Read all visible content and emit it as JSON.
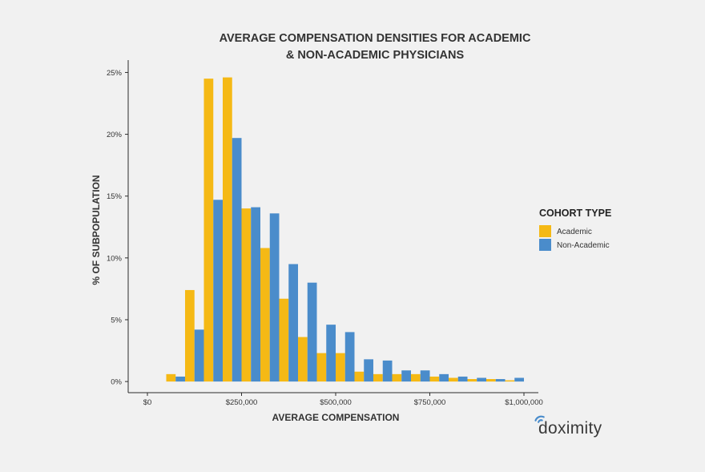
{
  "chart_data": {
    "type": "bar",
    "title_lines": [
      "AVERAGE COMPENSATION DENSITIES FOR ACADEMIC",
      "& NON-ACADEMIC PHYSICIANS"
    ],
    "xlabel": "AVERAGE COMPENSATION",
    "ylabel": "% OF SUBPOPULATION",
    "xlim": [
      0,
      1000000
    ],
    "ylim": [
      -0.9,
      26
    ],
    "x_ticks": [
      {
        "value": 0,
        "label": "$0"
      },
      {
        "value": 250000,
        "label": "$250,000"
      },
      {
        "value": 500000,
        "label": "$500,000"
      },
      {
        "value": 750000,
        "label": "$750,000"
      },
      {
        "value": 1000000,
        "label": "$1,000,000"
      }
    ],
    "y_ticks": [
      {
        "value": 0,
        "label": "0%"
      },
      {
        "value": 5,
        "label": "5%"
      },
      {
        "value": 10,
        "label": "10%"
      },
      {
        "value": 15,
        "label": "15%"
      },
      {
        "value": 20,
        "label": "20%"
      },
      {
        "value": 25,
        "label": "25%"
      }
    ],
    "bin_width": 50000,
    "bin_centers": [
      75000,
      125000,
      175000,
      225000,
      275000,
      325000,
      375000,
      425000,
      475000,
      525000,
      575000,
      625000,
      675000,
      725000,
      775000,
      825000,
      875000,
      925000,
      975000
    ],
    "series": [
      {
        "name": "Academic",
        "color": "#f5b915",
        "values": [
          0.6,
          7.4,
          24.5,
          24.6,
          14.0,
          10.8,
          6.7,
          3.6,
          2.3,
          2.3,
          0.8,
          0.6,
          0.6,
          0.6,
          0.4,
          0.3,
          0.2,
          0.2,
          0.1
        ]
      },
      {
        "name": "Non-Academic",
        "color": "#4a8ccb",
        "values": [
          0.4,
          4.2,
          14.7,
          19.7,
          14.1,
          13.6,
          9.5,
          8.0,
          4.6,
          4.0,
          1.8,
          1.7,
          0.9,
          0.9,
          0.6,
          0.4,
          0.3,
          0.2,
          0.3
        ]
      }
    ],
    "legend": {
      "title": "COHORT TYPE",
      "position": "right"
    }
  },
  "brand": {
    "name": "doximity",
    "color": "#3a3a3a"
  }
}
